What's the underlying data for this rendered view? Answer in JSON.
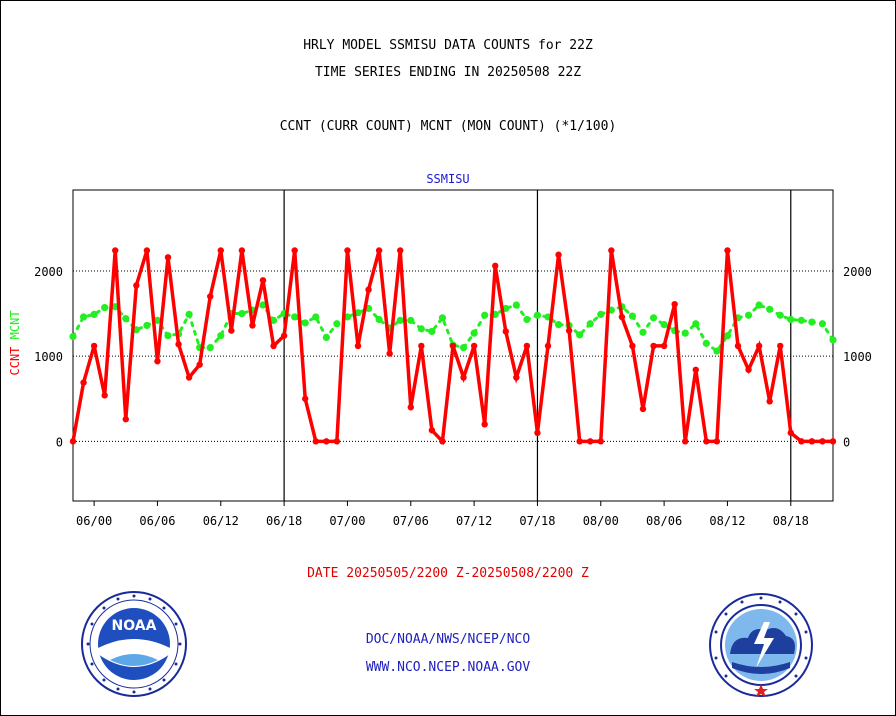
{
  "header": {
    "title_line1": "HRLY MODEL SSMISU DATA COUNTS for 22Z",
    "title_line2": "TIME SERIES ENDING IN 20250508 22Z",
    "subtitle": "CCNT (CURR COUNT) MCNT (MON COUNT) (*1/100)",
    "plot_name": "SSMISU"
  },
  "footer": {
    "date_range": "DATE 20250505/2200 Z-20250508/2200 Z",
    "org": "DOC/NOAA/NWS/NCEP/NCO",
    "url": "WWW.NCO.NCEP.NOAA.GOV"
  },
  "colors": {
    "ccnt": "#ff0000",
    "mcnt": "#22ee22",
    "axis_text": "#000000",
    "title_blue": "#1a1ad0"
  },
  "logos": {
    "left": {
      "icon": "noaa-logo",
      "text": "NOAA"
    },
    "right": {
      "icon": "nws-logo"
    }
  },
  "chart_data": {
    "type": "line",
    "ylabel": "CCNT  MCNT",
    "y_ticks": [
      0,
      1000,
      2000
    ],
    "y_tick_labels": [
      "0",
      "1000",
      "2000"
    ],
    "ylim": [
      -700,
      2950
    ],
    "x_tick_labels": [
      "06/00",
      "06/06",
      "06/12",
      "06/18",
      "07/00",
      "07/06",
      "07/12",
      "07/18",
      "08/00",
      "08/06",
      "08/12",
      "08/18"
    ],
    "x_tick_hours": [
      2,
      8,
      14,
      20,
      26,
      32,
      38,
      44,
      50,
      56,
      62,
      68
    ],
    "day_boundaries_hours": [
      20,
      44,
      68
    ],
    "xlim": [
      0,
      72
    ],
    "grid": "horizontal dotted",
    "series": [
      {
        "name": "CCNT",
        "values": [
          0,
          690,
          1120,
          540,
          2240,
          260,
          1830,
          2240,
          940,
          2160,
          1140,
          750,
          900,
          1700,
          2240,
          1300,
          2240,
          1360,
          1890,
          1120,
          1240,
          2240,
          500,
          0,
          0,
          0,
          2240,
          1120,
          1780,
          2240,
          1030,
          2240,
          400,
          1120,
          130,
          0,
          1120,
          750,
          1120,
          200,
          2060,
          1290,
          750,
          1120,
          100,
          1120,
          2190,
          1300,
          0,
          0,
          0,
          2240,
          1460,
          1120,
          380,
          1120,
          1120,
          1610,
          0,
          840,
          0,
          0,
          2240,
          1120,
          840,
          1120,
          470,
          1120,
          100,
          0,
          0,
          0,
          0
        ]
      },
      {
        "name": "MCNT",
        "values": [
          1230,
          1460,
          1490,
          1570,
          1580,
          1440,
          1310,
          1360,
          1420,
          1240,
          1260,
          1490,
          1100,
          1100,
          1240,
          1500,
          1500,
          1540,
          1600,
          1420,
          1500,
          1460,
          1390,
          1460,
          1220,
          1380,
          1460,
          1510,
          1560,
          1430,
          1330,
          1420,
          1420,
          1320,
          1290,
          1450,
          1130,
          1100,
          1270,
          1480,
          1490,
          1560,
          1600,
          1430,
          1480,
          1460,
          1370,
          1360,
          1250,
          1380,
          1490,
          1540,
          1580,
          1470,
          1280,
          1450,
          1370,
          1300,
          1270,
          1380,
          1150,
          1060,
          1240,
          1450,
          1480,
          1600,
          1550,
          1480,
          1430,
          1420,
          1400,
          1380,
          1190
        ]
      }
    ]
  }
}
